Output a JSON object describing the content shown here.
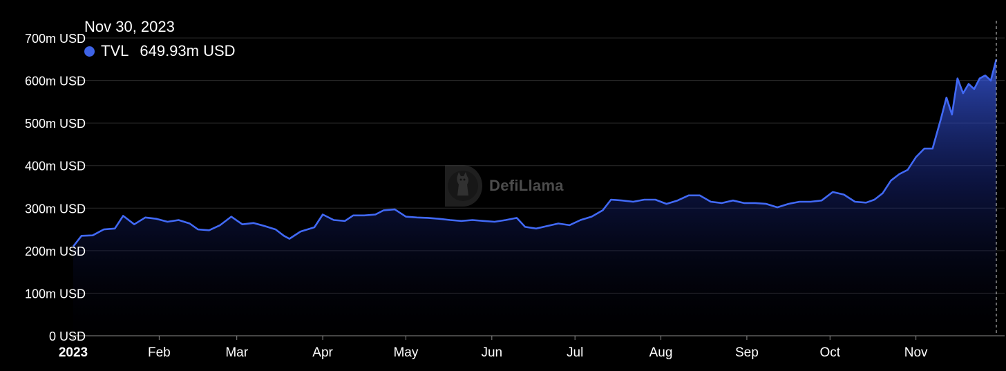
{
  "tooltip": {
    "date": "Nov 30, 2023",
    "series_label": "TVL",
    "value": "649.93m USD"
  },
  "watermark": {
    "text": "DefiLlama"
  },
  "colors": {
    "accent": "#3e63e6",
    "line": "#4169f5",
    "background": "#000000",
    "grid": "#2a2a2a"
  },
  "chart_data": {
    "type": "area",
    "title": "",
    "xlabel": "",
    "ylabel": "",
    "ylim": [
      0,
      700
    ],
    "y_unit": "m USD",
    "y_ticks": [
      0,
      100,
      200,
      300,
      400,
      500,
      600,
      700
    ],
    "y_tick_labels": [
      "0 USD",
      "100m USD",
      "200m USD",
      "300m USD",
      "400m USD",
      "500m USD",
      "600m USD",
      "700m USD"
    ],
    "x_ticks": [
      {
        "date": "2023-01-01",
        "label": "2023"
      },
      {
        "date": "2023-02-01",
        "label": "Feb"
      },
      {
        "date": "2023-03-01",
        "label": "Mar"
      },
      {
        "date": "2023-04-01",
        "label": "Apr"
      },
      {
        "date": "2023-05-01",
        "label": "May"
      },
      {
        "date": "2023-06-01",
        "label": "Jun"
      },
      {
        "date": "2023-07-01",
        "label": "Jul"
      },
      {
        "date": "2023-08-01",
        "label": "Aug"
      },
      {
        "date": "2023-09-01",
        "label": "Sep"
      },
      {
        "date": "2023-10-01",
        "label": "Oct"
      },
      {
        "date": "2023-11-01",
        "label": "Nov"
      }
    ],
    "grid": true,
    "series": [
      {
        "name": "TVL",
        "points": [
          [
            "2023-01-01",
            210
          ],
          [
            "2023-01-04",
            235
          ],
          [
            "2023-01-08",
            236
          ],
          [
            "2023-01-12",
            250
          ],
          [
            "2023-01-16",
            252
          ],
          [
            "2023-01-19",
            282
          ],
          [
            "2023-01-23",
            262
          ],
          [
            "2023-01-27",
            278
          ],
          [
            "2023-01-31",
            275
          ],
          [
            "2023-02-04",
            268
          ],
          [
            "2023-02-08",
            272
          ],
          [
            "2023-02-12",
            264
          ],
          [
            "2023-02-15",
            250
          ],
          [
            "2023-02-19",
            248
          ],
          [
            "2023-02-23",
            260
          ],
          [
            "2023-02-27",
            280
          ],
          [
            "2023-03-03",
            262
          ],
          [
            "2023-03-07",
            265
          ],
          [
            "2023-03-11",
            258
          ],
          [
            "2023-03-15",
            250
          ],
          [
            "2023-03-18",
            235
          ],
          [
            "2023-03-20",
            228
          ],
          [
            "2023-03-24",
            245
          ],
          [
            "2023-03-29",
            255
          ],
          [
            "2023-04-01",
            285
          ],
          [
            "2023-04-05",
            272
          ],
          [
            "2023-04-09",
            270
          ],
          [
            "2023-04-12",
            283
          ],
          [
            "2023-04-16",
            283
          ],
          [
            "2023-04-20",
            285
          ],
          [
            "2023-04-23",
            295
          ],
          [
            "2023-04-27",
            297
          ],
          [
            "2023-05-01",
            280
          ],
          [
            "2023-05-05",
            278
          ],
          [
            "2023-05-09",
            277
          ],
          [
            "2023-05-13",
            275
          ],
          [
            "2023-05-17",
            272
          ],
          [
            "2023-05-21",
            270
          ],
          [
            "2023-05-25",
            272
          ],
          [
            "2023-05-29",
            270
          ],
          [
            "2023-06-02",
            268
          ],
          [
            "2023-06-06",
            272
          ],
          [
            "2023-06-10",
            277
          ],
          [
            "2023-06-13",
            256
          ],
          [
            "2023-06-17",
            252
          ],
          [
            "2023-06-21",
            258
          ],
          [
            "2023-06-25",
            264
          ],
          [
            "2023-06-29",
            260
          ],
          [
            "2023-07-03",
            272
          ],
          [
            "2023-07-07",
            280
          ],
          [
            "2023-07-11",
            295
          ],
          [
            "2023-07-14",
            320
          ],
          [
            "2023-07-18",
            318
          ],
          [
            "2023-07-22",
            315
          ],
          [
            "2023-07-26",
            320
          ],
          [
            "2023-07-30",
            320
          ],
          [
            "2023-08-03",
            310
          ],
          [
            "2023-08-07",
            318
          ],
          [
            "2023-08-11",
            330
          ],
          [
            "2023-08-15",
            330
          ],
          [
            "2023-08-19",
            315
          ],
          [
            "2023-08-23",
            312
          ],
          [
            "2023-08-27",
            318
          ],
          [
            "2023-08-31",
            312
          ],
          [
            "2023-09-04",
            312
          ],
          [
            "2023-09-08",
            310
          ],
          [
            "2023-09-12",
            302
          ],
          [
            "2023-09-16",
            310
          ],
          [
            "2023-09-20",
            315
          ],
          [
            "2023-09-24",
            315
          ],
          [
            "2023-09-28",
            318
          ],
          [
            "2023-10-02",
            338
          ],
          [
            "2023-10-06",
            332
          ],
          [
            "2023-10-10",
            315
          ],
          [
            "2023-10-14",
            313
          ],
          [
            "2023-10-17",
            320
          ],
          [
            "2023-10-20",
            335
          ],
          [
            "2023-10-23",
            365
          ],
          [
            "2023-10-26",
            380
          ],
          [
            "2023-10-29",
            390
          ],
          [
            "2023-11-01",
            420
          ],
          [
            "2023-11-04",
            440
          ],
          [
            "2023-11-07",
            440
          ],
          [
            "2023-11-10",
            510
          ],
          [
            "2023-11-12",
            560
          ],
          [
            "2023-11-14",
            520
          ],
          [
            "2023-11-16",
            605
          ],
          [
            "2023-11-18",
            570
          ],
          [
            "2023-11-20",
            592
          ],
          [
            "2023-11-22",
            580
          ],
          [
            "2023-11-24",
            605
          ],
          [
            "2023-11-26",
            612
          ],
          [
            "2023-11-28",
            600
          ],
          [
            "2023-11-30",
            650
          ]
        ]
      }
    ],
    "highlight": {
      "date": "2023-11-30",
      "value": 649.93
    }
  }
}
